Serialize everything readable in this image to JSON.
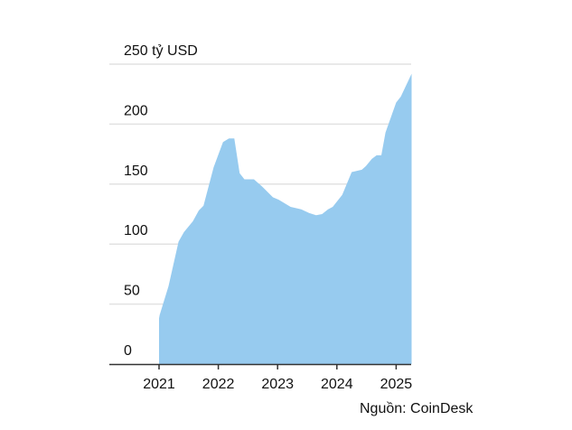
{
  "chart_data": {
    "type": "area",
    "title": "",
    "unit_label": "250 tỷ USD",
    "xlabel": "",
    "ylabel": "",
    "ylim": [
      0,
      250
    ],
    "xlim": [
      2020.3,
      2025.26
    ],
    "yticks": [
      0,
      50,
      100,
      150,
      200,
      250
    ],
    "ytick_labels": [
      "0",
      "50",
      "100",
      "150",
      "200",
      "250 tỷ USD"
    ],
    "xticks": [
      2021,
      2022,
      2023,
      2024,
      2025
    ],
    "xtick_labels": [
      "2021",
      "2022",
      "2023",
      "2024",
      "2025"
    ],
    "grid": true,
    "fill_color": "#97cbef",
    "x": [
      2021.0,
      2021.01,
      2021.16,
      2021.33,
      2021.42,
      2021.57,
      2021.67,
      2021.75,
      2021.92,
      2022.08,
      2022.18,
      2022.27,
      2022.36,
      2022.44,
      2022.6,
      2022.74,
      2022.92,
      2023.02,
      2023.22,
      2023.4,
      2023.53,
      2023.65,
      2023.75,
      2023.85,
      2023.93,
      2024.09,
      2024.25,
      2024.42,
      2024.49,
      2024.59,
      2024.67,
      2024.75,
      2024.82,
      2025.0,
      2025.08,
      2025.26
    ],
    "values": [
      38,
      41,
      65,
      102,
      110,
      119,
      128,
      132,
      164,
      185,
      188,
      188,
      159,
      154,
      154,
      148,
      139,
      137,
      131,
      129,
      126,
      124,
      125,
      129,
      131,
      141,
      160,
      162,
      165,
      171,
      174,
      174,
      193,
      218,
      223,
      242
    ],
    "source": "Nguồn: CoinDesk"
  }
}
